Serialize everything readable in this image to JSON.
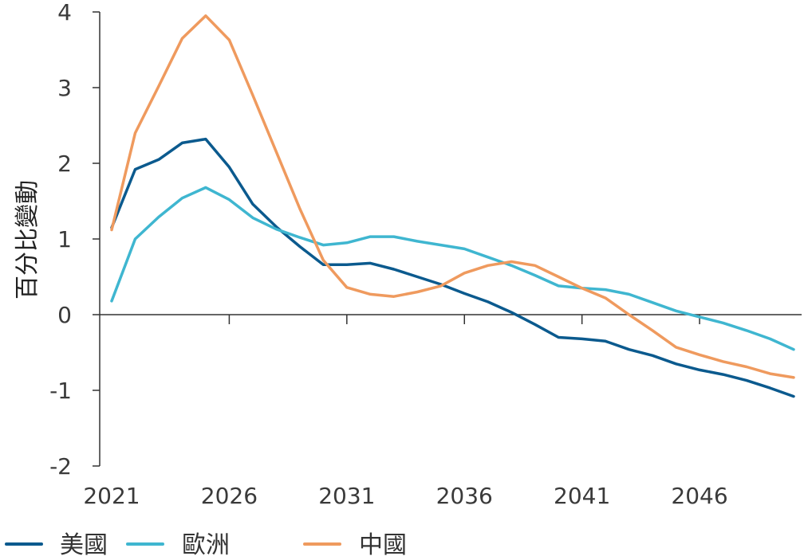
{
  "chart_data": {
    "type": "line",
    "title": "",
    "xlabel": "",
    "ylabel": "百分比變動",
    "ylim": [
      -2,
      4
    ],
    "xlim": [
      2021,
      2050
    ],
    "y_ticks": [
      "4",
      "3",
      "2",
      "1",
      "0",
      "-1",
      "-2"
    ],
    "x_ticks": [
      "2021",
      "2026",
      "2031",
      "2036",
      "2041",
      "2046"
    ],
    "grid": false,
    "legend": "bottom-left",
    "x": [
      2021,
      2022,
      2023,
      2024,
      2025,
      2026,
      2027,
      2028,
      2029,
      2030,
      2031,
      2032,
      2033,
      2034,
      2035,
      2036,
      2037,
      2038,
      2039,
      2040,
      2041,
      2042,
      2043,
      2044,
      2045,
      2046,
      2047,
      2048,
      2049,
      2050
    ],
    "series": [
      {
        "name": "美國",
        "color": "#0b5a8e",
        "values": [
          1.15,
          1.92,
          2.05,
          2.27,
          2.32,
          1.95,
          1.46,
          1.16,
          0.9,
          0.66,
          0.66,
          0.68,
          0.6,
          0.5,
          0.4,
          0.28,
          0.17,
          0.03,
          -0.13,
          -0.3,
          -0.32,
          -0.35,
          -0.46,
          -0.54,
          -0.65,
          -0.73,
          -0.79,
          -0.87,
          -0.97,
          -1.08
        ]
      },
      {
        "name": "歐洲",
        "color": "#3fb6d0",
        "values": [
          0.18,
          1.0,
          1.29,
          1.54,
          1.68,
          1.52,
          1.28,
          1.13,
          1.02,
          0.92,
          0.95,
          1.03,
          1.03,
          0.97,
          0.92,
          0.87,
          0.76,
          0.65,
          0.52,
          0.38,
          0.35,
          0.33,
          0.27,
          0.16,
          0.05,
          -0.03,
          -0.11,
          -0.21,
          -0.32,
          -0.46
        ]
      },
      {
        "name": "中國",
        "color": "#ef9a5e",
        "values": [
          1.12,
          2.4,
          3.02,
          3.65,
          3.95,
          3.63,
          2.9,
          2.15,
          1.4,
          0.72,
          0.36,
          0.27,
          0.24,
          0.3,
          0.38,
          0.55,
          0.65,
          0.7,
          0.65,
          0.5,
          0.35,
          0.22,
          0.0,
          -0.21,
          -0.43,
          -0.53,
          -0.62,
          -0.69,
          -0.78,
          -0.83
        ]
      }
    ]
  }
}
